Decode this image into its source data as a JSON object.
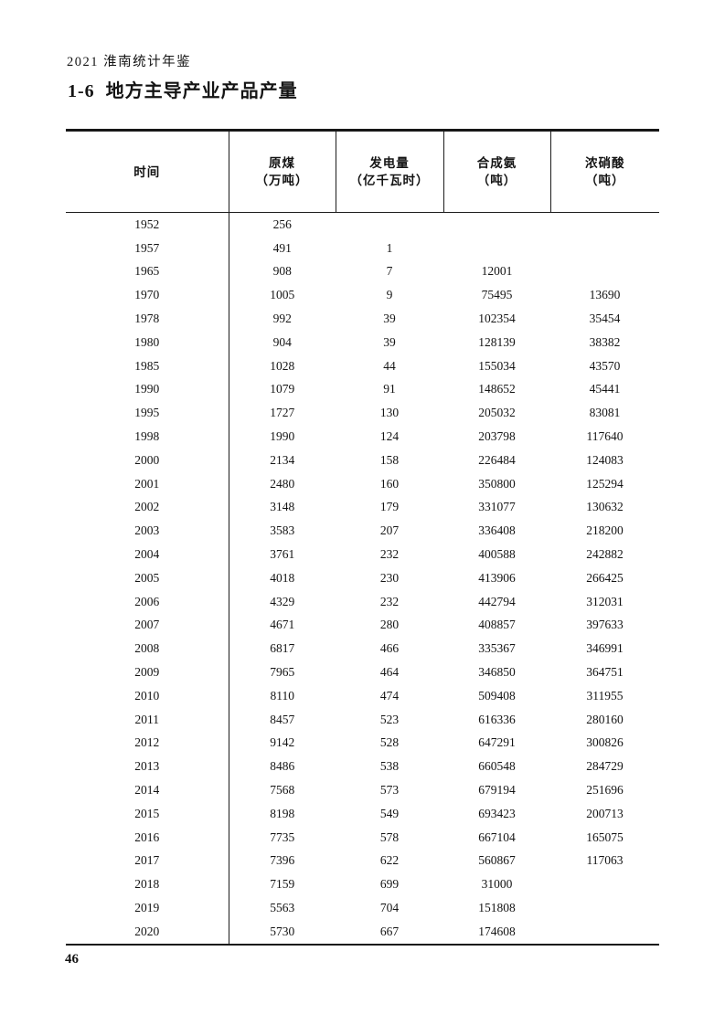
{
  "page_header": "2021 淮南统计年鉴",
  "title": "1-6  地方主导产业产品产量",
  "table": {
    "column_keys": [
      "time",
      "raw-coal",
      "electricity",
      "synthetic-ammonia",
      "nitric-acid"
    ],
    "columns": [
      {
        "label": "时间",
        "unit": ""
      },
      {
        "label": "原煤",
        "unit": "（万吨）"
      },
      {
        "label": "发电量",
        "unit": "（亿千瓦时）"
      },
      {
        "label": "合成氨",
        "unit": "（吨）"
      },
      {
        "label": "浓硝酸",
        "unit": "（吨）"
      }
    ],
    "rows": [
      [
        "1952",
        "256",
        "",
        "",
        ""
      ],
      [
        "1957",
        "491",
        "1",
        "",
        ""
      ],
      [
        "1965",
        "908",
        "7",
        "12001",
        ""
      ],
      [
        "1970",
        "1005",
        "9",
        "75495",
        "13690"
      ],
      [
        "1978",
        "992",
        "39",
        "102354",
        "35454"
      ],
      [
        "1980",
        "904",
        "39",
        "128139",
        "38382"
      ],
      [
        "1985",
        "1028",
        "44",
        "155034",
        "43570"
      ],
      [
        "1990",
        "1079",
        "91",
        "148652",
        "45441"
      ],
      [
        "1995",
        "1727",
        "130",
        "205032",
        "83081"
      ],
      [
        "1998",
        "1990",
        "124",
        "203798",
        "117640"
      ],
      [
        "2000",
        "2134",
        "158",
        "226484",
        "124083"
      ],
      [
        "2001",
        "2480",
        "160",
        "350800",
        "125294"
      ],
      [
        "2002",
        "3148",
        "179",
        "331077",
        "130632"
      ],
      [
        "2003",
        "3583",
        "207",
        "336408",
        "218200"
      ],
      [
        "2004",
        "3761",
        "232",
        "400588",
        "242882"
      ],
      [
        "2005",
        "4018",
        "230",
        "413906",
        "266425"
      ],
      [
        "2006",
        "4329",
        "232",
        "442794",
        "312031"
      ],
      [
        "2007",
        "4671",
        "280",
        "408857",
        "397633"
      ],
      [
        "2008",
        "6817",
        "466",
        "335367",
        "346991"
      ],
      [
        "2009",
        "7965",
        "464",
        "346850",
        "364751"
      ],
      [
        "2010",
        "8110",
        "474",
        "509408",
        "311955"
      ],
      [
        "2011",
        "8457",
        "523",
        "616336",
        "280160"
      ],
      [
        "2012",
        "9142",
        "528",
        "647291",
        "300826"
      ],
      [
        "2013",
        "8486",
        "538",
        "660548",
        "284729"
      ],
      [
        "2014",
        "7568",
        "573",
        "679194",
        "251696"
      ],
      [
        "2015",
        "8198",
        "549",
        "693423",
        "200713"
      ],
      [
        "2016",
        "7735",
        "578",
        "667104",
        "165075"
      ],
      [
        "2017",
        "7396",
        "622",
        "560867",
        "117063"
      ],
      [
        "2018",
        "7159",
        "699",
        "31000",
        ""
      ],
      [
        "2019",
        "5563",
        "704",
        "151808",
        ""
      ],
      [
        "2020",
        "5730",
        "667",
        "174608",
        ""
      ]
    ]
  },
  "footer": {
    "page_number": "46"
  }
}
